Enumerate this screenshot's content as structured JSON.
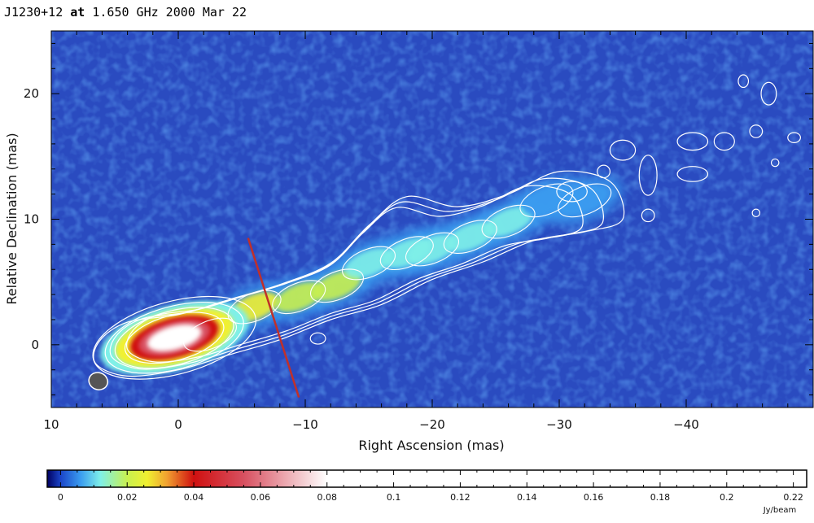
{
  "chart_data": {
    "type": "heatmap",
    "title": {
      "source": "J1230+12",
      "at": "at",
      "freq": "1.650 GHz 2000 Mar 22"
    },
    "xlabel": "Right Ascension  (mas)",
    "ylabel": "Relative Declination  (mas)",
    "xlim": [
      10,
      -50
    ],
    "ylim": [
      -5,
      25
    ],
    "x_ticks": [
      10,
      0,
      -10,
      -20,
      -30,
      -40
    ],
    "x_tick_labels": [
      "10",
      "0",
      "−10",
      "−20",
      "−30",
      "−40"
    ],
    "y_ticks": [
      0,
      10,
      20
    ],
    "y_tick_labels": [
      "0",
      "10",
      "20"
    ],
    "colorbar": {
      "range": [
        -0.004,
        0.224
      ],
      "ticks": [
        0,
        0.02,
        0.04,
        0.06,
        0.08,
        0.1,
        0.12,
        0.14,
        0.16,
        0.18,
        0.2,
        0.22
      ],
      "tick_labels": [
        "0",
        "0.02",
        "0.04",
        "0.06",
        "0.08",
        "0.1",
        "0.12",
        "0.14",
        "0.16",
        "0.18",
        "0.2",
        "0.22"
      ],
      "unit": "Jy/beam",
      "stops": [
        {
          "v": -0.004,
          "color": "#000060"
        },
        {
          "v": 0.0,
          "color": "#1a44c8"
        },
        {
          "v": 0.006,
          "color": "#3a9cf0"
        },
        {
          "v": 0.012,
          "color": "#7ff0e8"
        },
        {
          "v": 0.02,
          "color": "#c8f050"
        },
        {
          "v": 0.026,
          "color": "#f0f030"
        },
        {
          "v": 0.032,
          "color": "#f0a030"
        },
        {
          "v": 0.04,
          "color": "#d01010"
        },
        {
          "v": 0.055,
          "color": "#d85060"
        },
        {
          "v": 0.08,
          "color": "#ffffff"
        },
        {
          "v": 0.224,
          "color": "#ffffff"
        }
      ]
    },
    "background_color": "#2a4bc0",
    "contour_color": "#ffffff",
    "jet_axis_color": "#c0302a",
    "beam_color": "#555555",
    "features": {
      "core": {
        "x": 0.5,
        "y": 0.5,
        "peak": 0.08
      },
      "jet_knots": [
        {
          "x": -2.5,
          "y": 0.8,
          "value": 0.04
        },
        {
          "x": -6,
          "y": 3.0,
          "value": 0.026
        },
        {
          "x": -9.5,
          "y": 3.8,
          "value": 0.022
        },
        {
          "x": -12.5,
          "y": 4.7,
          "value": 0.02
        },
        {
          "x": -15,
          "y": 6.5,
          "value": 0.018
        },
        {
          "x": -18,
          "y": 7.3,
          "value": 0.016
        },
        {
          "x": -20,
          "y": 7.6,
          "value": 0.014
        },
        {
          "x": -23,
          "y": 8.6,
          "value": 0.013
        },
        {
          "x": -26,
          "y": 9.8,
          "value": 0.012
        },
        {
          "x": -29,
          "y": 11.5,
          "value": 0.01
        },
        {
          "x": -32,
          "y": 11.5,
          "value": 0.008
        }
      ],
      "jet_axis_line": {
        "x1": -5.5,
        "y1": 8.5,
        "x2": -9.5,
        "y2": -4.2
      },
      "beam": {
        "x": 6.3,
        "y": -2.9,
        "major_mas": 1.5,
        "minor_mas": 1.0,
        "pa_deg": 20
      }
    }
  }
}
